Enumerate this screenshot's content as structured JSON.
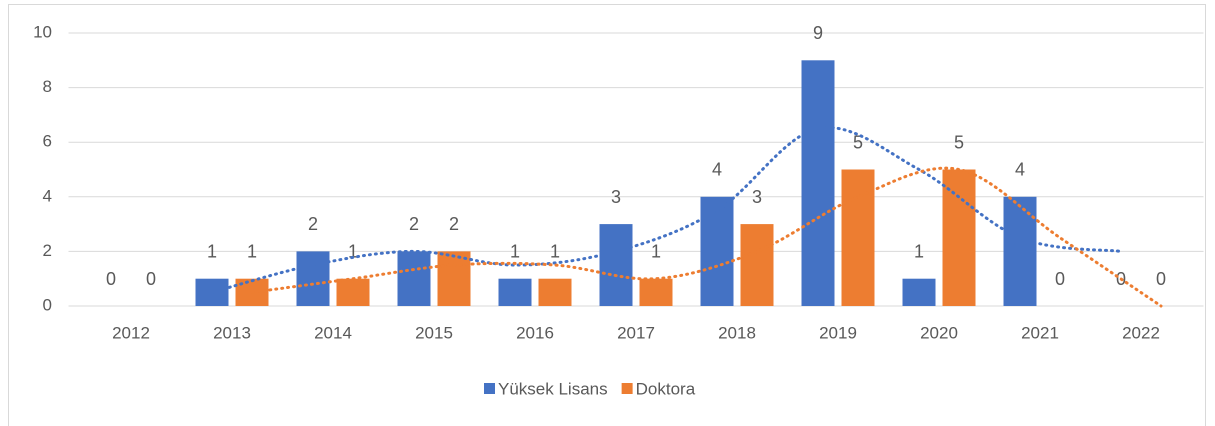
{
  "chart_data": {
    "type": "bar",
    "categories": [
      "2012",
      "2013",
      "2014",
      "2015",
      "2016",
      "2017",
      "2018",
      "2019",
      "2020",
      "2021",
      "2022"
    ],
    "series": [
      {
        "name": "Yüksek Lisans",
        "color": "#4472c4",
        "values": [
          0,
          1,
          2,
          2,
          1,
          3,
          4,
          9,
          1,
          4,
          0
        ]
      },
      {
        "name": "Doktora",
        "color": "#ed7d31",
        "values": [
          0,
          1,
          1,
          2,
          1,
          1,
          3,
          5,
          5,
          0,
          0
        ]
      }
    ],
    "ylim": [
      0,
      10
    ],
    "yticks": [
      0,
      2,
      4,
      6,
      8,
      10
    ],
    "grid": true,
    "trendline": {
      "type": "moving-average",
      "period": 2
    },
    "legend": "bottom"
  }
}
